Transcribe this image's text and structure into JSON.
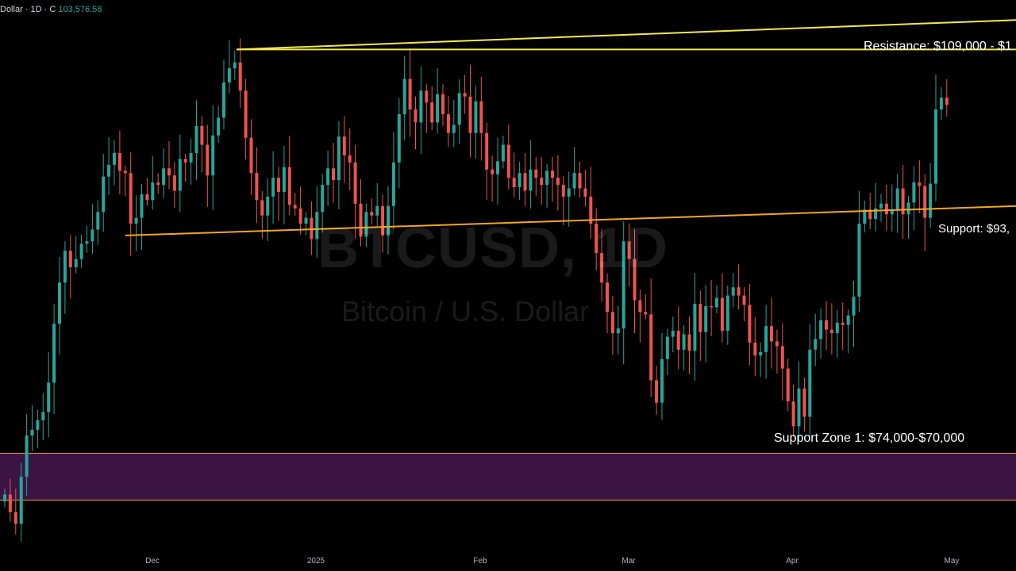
{
  "header": {
    "title": "Dollar · 1D · C",
    "close_value": "103,576.58"
  },
  "watermark": {
    "symbol": "BTCUSD, 1D",
    "description": "Bitcoin / U.S. Dollar"
  },
  "colors": {
    "background": "#000000",
    "up_candle": "#26a69a",
    "down_candle": "#ef5350",
    "resistance_line": "#f5e94a",
    "support_line": "#f5a623",
    "support_zone_fill": "#3c1444",
    "support_zone_border": "#f5a623"
  },
  "annotations": {
    "resistance": "Resistance: $109,000 - $1",
    "support": "Support: $93,",
    "support_zone": "Support Zone 1: $74,000-$70,000"
  },
  "chart_data": {
    "type": "candlestick",
    "symbol": "BTCUSD",
    "interval": "1D",
    "x_tick_labels": [
      "Dec",
      "2025",
      "Feb",
      "Mar",
      "Apr",
      "May"
    ],
    "y_range": [
      64000,
      112500
    ],
    "grid": false,
    "levels": {
      "resistance_horizontal": 108300,
      "resistance_trend_start": 108300,
      "resistance_trend_end": 110800,
      "support_trend_start": 92500,
      "support_trend_end": 95000,
      "support_zone": [
        70000,
        74000
      ]
    },
    "closes": [
      70500,
      69000,
      68000,
      72000,
      75500,
      76000,
      76800,
      77500,
      80000,
      85000,
      88500,
      91200,
      89800,
      90500,
      91800,
      92000,
      93000,
      94500,
      97500,
      98500,
      99500,
      98000,
      97800,
      93500,
      94000,
      96000,
      95500,
      97000,
      96800,
      98200,
      97600,
      96300,
      99000,
      98700,
      99500,
      101800,
      100200,
      97600,
      101000,
      102500,
      105500,
      106700,
      107200,
      104800,
      100800,
      97800,
      95500,
      94200,
      95800,
      97400,
      96200,
      98300,
      95100,
      94800,
      93500,
      94000,
      92200,
      94500,
      96800,
      98200,
      97200,
      100900,
      99300,
      98700,
      95200,
      92400,
      94500,
      94200,
      95000,
      92500,
      95000,
      98700,
      102800,
      105800,
      103200,
      102100,
      104800,
      103800,
      102100,
      104500,
      102800,
      101200,
      101900,
      104600,
      104300,
      101200,
      103900,
      101200,
      98100,
      97700,
      98800,
      100200,
      97400,
      96600,
      97800,
      96300,
      98100,
      97400,
      96800,
      98000,
      97400,
      96800,
      95800,
      96500,
      97800,
      96500,
      95800,
      93500,
      91000,
      88500,
      86000,
      84200,
      84600,
      92000,
      90500,
      87000,
      86000,
      85800,
      80200,
      78300,
      82000,
      83900,
      84400,
      82800,
      84100,
      82700,
      86700,
      84300,
      86500,
      86400,
      87200,
      84400,
      87400,
      88100,
      87400,
      86600,
      83400,
      82300,
      82600,
      84800,
      83500,
      83100,
      81200,
      78400,
      76300,
      79500,
      77100,
      82800,
      83700,
      85300,
      84500,
      84200,
      85100,
      84900,
      85700,
      87300,
      93500,
      94700,
      93900,
      94800,
      95200,
      94300,
      94600,
      96500,
      94300,
      95300,
      97000,
      96700,
      94000,
      96900,
      103200,
      104200,
      103600
    ]
  }
}
